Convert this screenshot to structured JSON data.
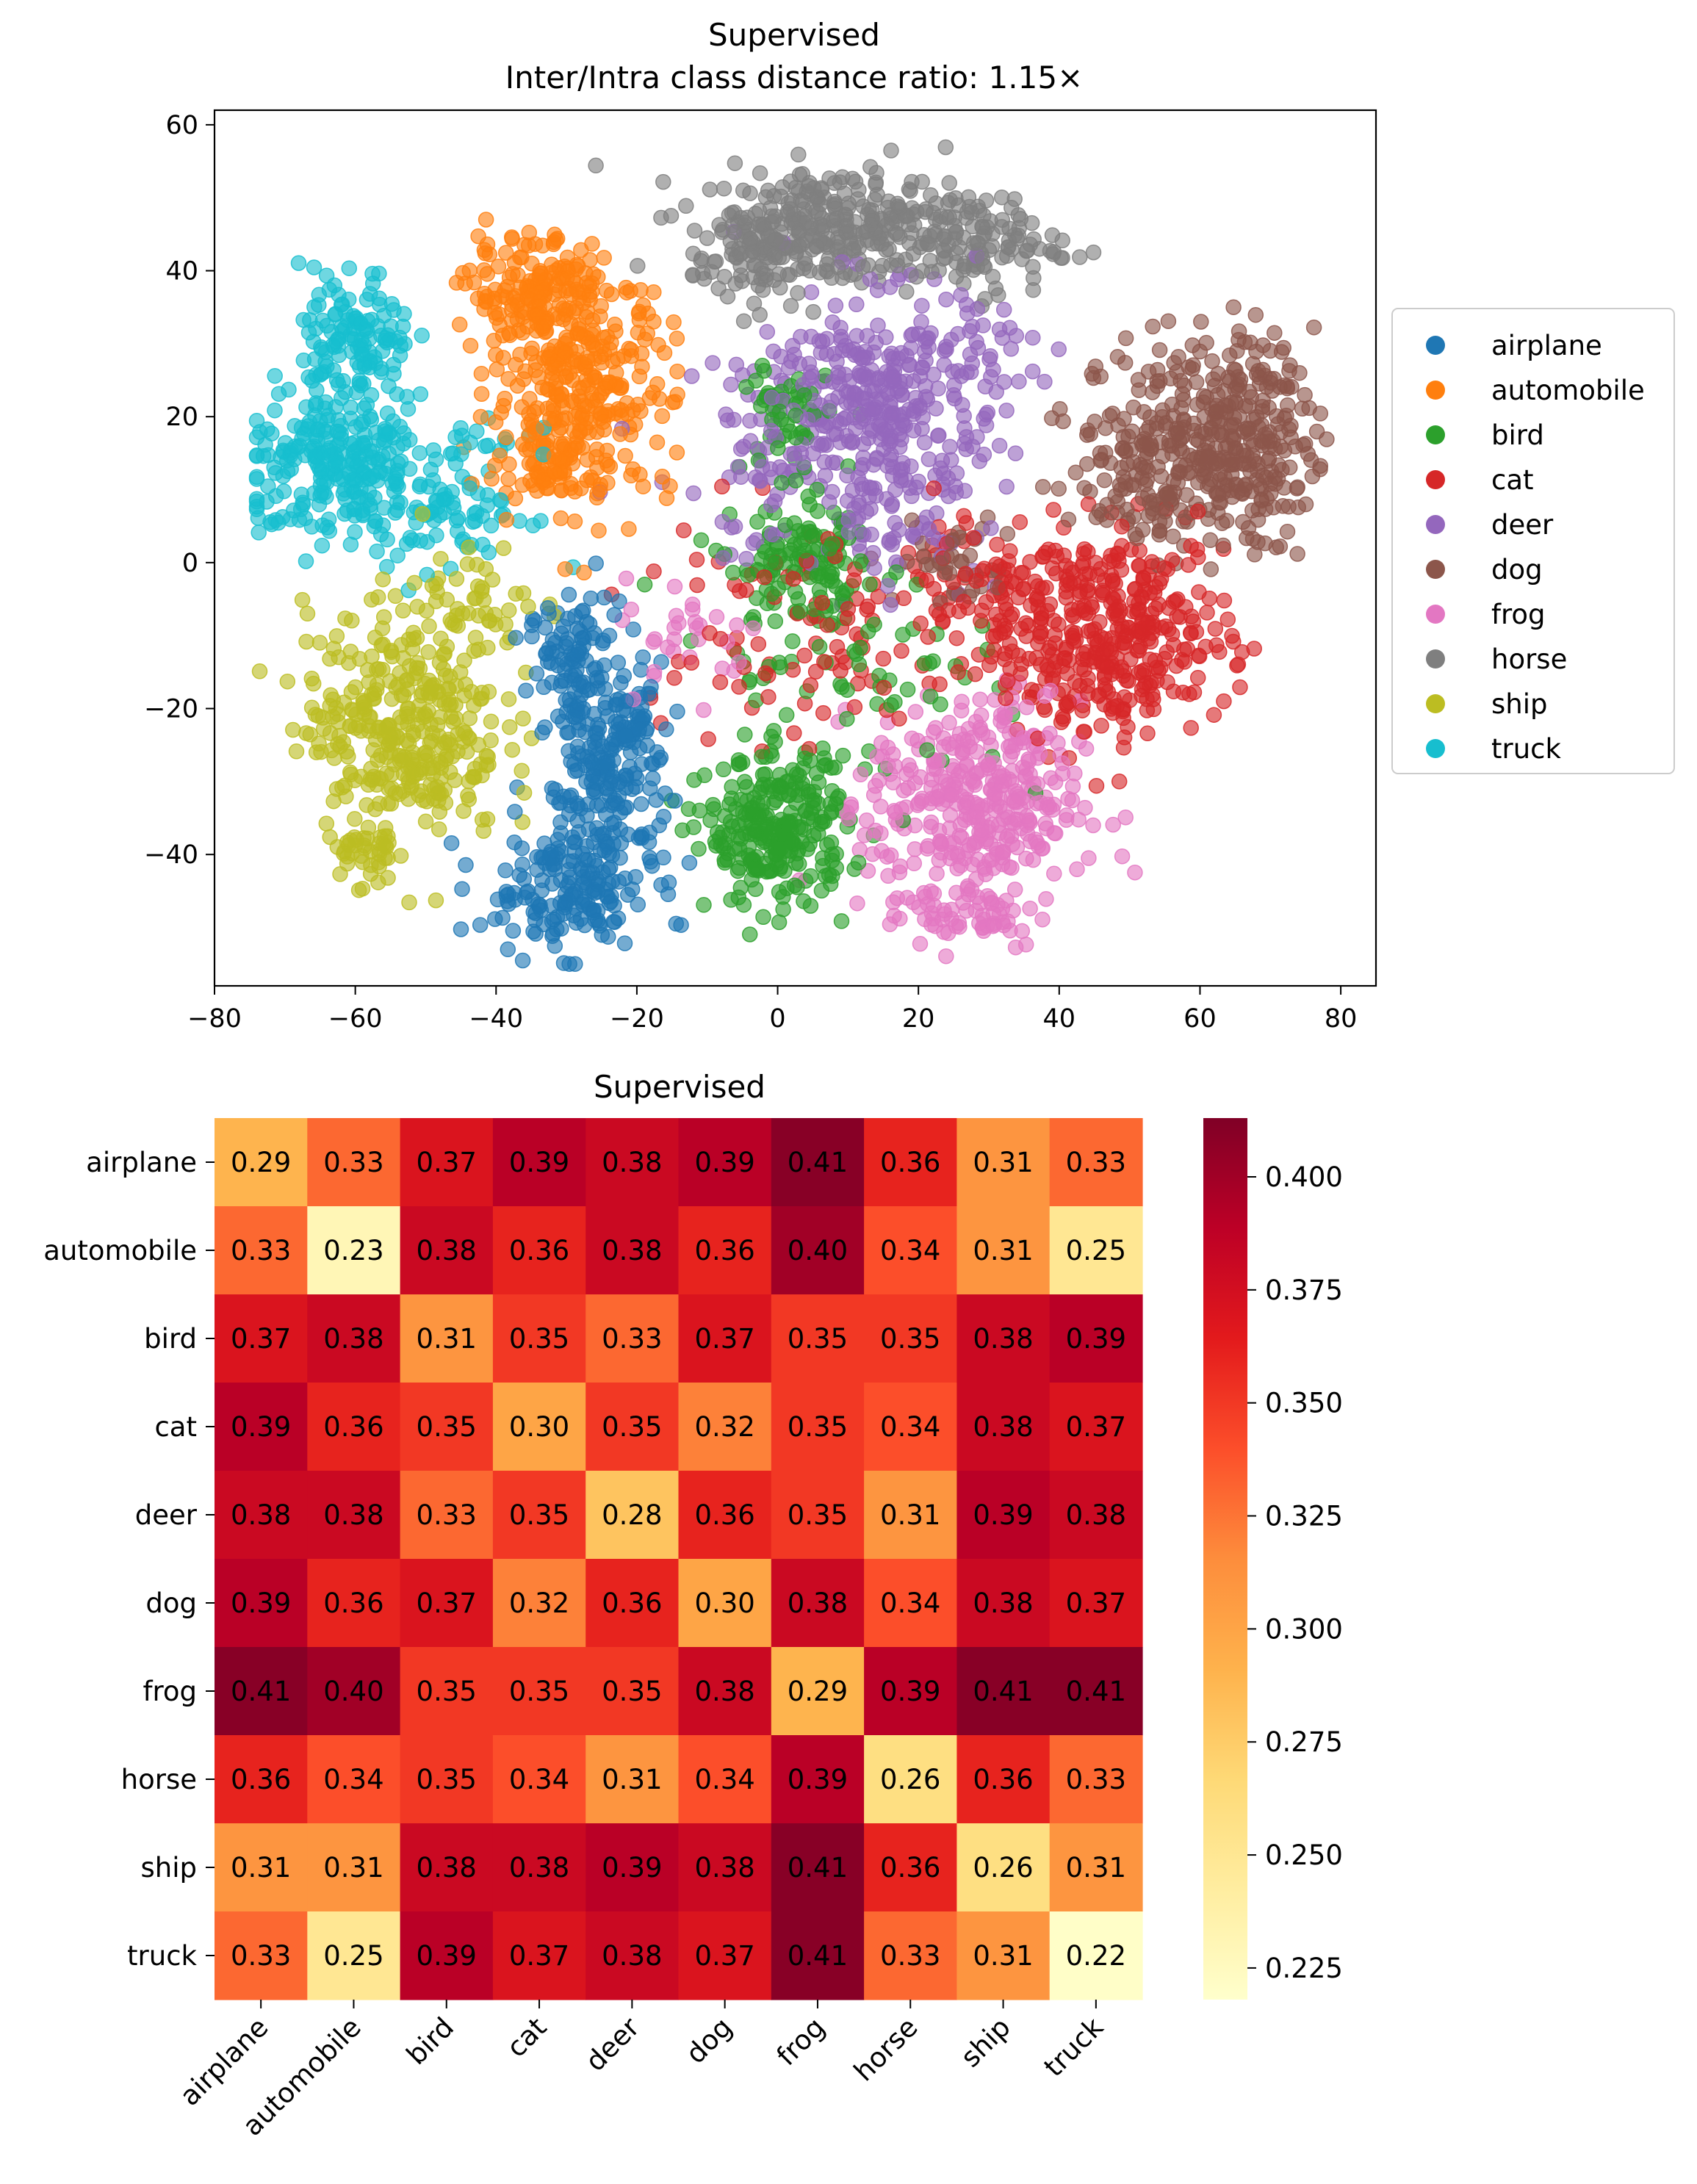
{
  "chart_data": [
    {
      "type": "scatter",
      "title": "Supervised",
      "subtitle": "Inter/Intra class distance ratio: 1.15×",
      "xlabel": "",
      "ylabel": "",
      "xlim": [
        -80,
        85
      ],
      "ylim": [
        -58,
        62
      ],
      "xticks": [
        "−80",
        "−60",
        "−40",
        "−20",
        "0",
        "20",
        "40",
        "60",
        "80"
      ],
      "yticks": [
        "−40",
        "−20",
        "0",
        "20",
        "40",
        "60"
      ],
      "legend_position": "right",
      "series": [
        {
          "name": "airplane",
          "color": "#1f77b4",
          "clusters": [
            {
              "cx": -29,
              "cy": -15,
              "sx": 3.2,
              "sy": 5,
              "n": 110
            },
            {
              "cx": -24,
              "cy": -30,
              "sx": 4,
              "sy": 6,
              "n": 140
            },
            {
              "cx": -30,
              "cy": -45,
              "sx": 6,
              "sy": 4,
              "n": 170
            },
            {
              "cx": -22,
              "cy": -22,
              "sx": 3,
              "sy": 5,
              "n": 60
            }
          ]
        },
        {
          "name": "automobile",
          "color": "#ff7f0e",
          "clusters": [
            {
              "cx": -34,
              "cy": 37,
              "sx": 5,
              "sy": 3.5,
              "n": 150
            },
            {
              "cx": -28,
              "cy": 24,
              "sx": 6.5,
              "sy": 7.5,
              "n": 300
            },
            {
              "cx": -32,
              "cy": 14,
              "sx": 4,
              "sy": 3,
              "n": 60
            }
          ]
        },
        {
          "name": "bird",
          "color": "#2ca02c",
          "clusters": [
            {
              "cx": 0,
              "cy": -37,
              "sx": 5,
              "sy": 5,
              "n": 260
            },
            {
              "cx": 4,
              "cy": 0,
              "sx": 5,
              "sy": 4,
              "n": 110
            },
            {
              "cx": 1,
              "cy": 20,
              "sx": 3,
              "sy": 4,
              "n": 50
            },
            {
              "cx": 8,
              "cy": -15,
              "sx": 12,
              "sy": 8,
              "n": 90
            }
          ]
        },
        {
          "name": "cat",
          "color": "#d62728",
          "clusters": [
            {
              "cx": 48,
              "cy": -10,
              "sx": 8,
              "sy": 7,
              "n": 360
            },
            {
              "cx": 30,
              "cy": -4,
              "sx": 7,
              "sy": 6,
              "n": 110
            },
            {
              "cx": 0,
              "cy": -10,
              "sx": 12,
              "sy": 9,
              "n": 90
            }
          ]
        },
        {
          "name": "deer",
          "color": "#9467bd",
          "clusters": [
            {
              "cx": 15,
              "cy": 23,
              "sx": 9,
              "sy": 7,
              "n": 340
            },
            {
              "cx": 17,
              "cy": 8,
              "sx": 6,
              "sy": 5,
              "n": 80
            },
            {
              "cx": 0,
              "cy": 12,
              "sx": 9,
              "sy": 6,
              "n": 60
            }
          ]
        },
        {
          "name": "dog",
          "color": "#8c564b",
          "clusters": [
            {
              "cx": 66,
              "cy": 17,
              "sx": 5,
              "sy": 7,
              "n": 260
            },
            {
              "cx": 54,
              "cy": 15,
              "sx": 6,
              "sy": 7,
              "n": 200
            },
            {
              "cx": 25,
              "cy": 0,
              "sx": 4,
              "sy": 3,
              "n": 40
            }
          ]
        },
        {
          "name": "frog",
          "color": "#e377c2",
          "clusters": [
            {
              "cx": 28,
              "cy": -33,
              "sx": 7.5,
              "sy": 7,
              "n": 370
            },
            {
              "cx": 27,
              "cy": -48,
              "sx": 6,
              "sy": 2.5,
              "n": 60
            },
            {
              "cx": -12,
              "cy": -10,
              "sx": 5,
              "sy": 4,
              "n": 30
            }
          ]
        },
        {
          "name": "horse",
          "color": "#7f7f7f",
          "clusters": [
            {
              "cx": 8,
              "cy": 46,
              "sx": 10,
              "sy": 4,
              "n": 300
            },
            {
              "cx": 28,
              "cy": 44,
              "sx": 6,
              "sy": 3.5,
              "n": 100
            },
            {
              "cx": -4,
              "cy": 42,
              "sx": 4,
              "sy": 3,
              "n": 60
            }
          ]
        },
        {
          "name": "ship",
          "color": "#bcbd22",
          "clusters": [
            {
              "cx": -53,
              "cy": -22,
              "sx": 7,
              "sy": 8,
              "n": 360
            },
            {
              "cx": -59,
              "cy": -40,
              "sx": 2.2,
              "sy": 2.5,
              "n": 35
            },
            {
              "cx": -42,
              "cy": -5,
              "sx": 4,
              "sy": 4,
              "n": 40
            }
          ]
        },
        {
          "name": "truck",
          "color": "#17becf",
          "clusters": [
            {
              "cx": -60,
              "cy": 30,
              "sx": 4,
              "sy": 5,
              "n": 130
            },
            {
              "cx": -62,
              "cy": 13,
              "sx": 7,
              "sy": 5,
              "n": 260
            },
            {
              "cx": -45,
              "cy": 8,
              "sx": 5,
              "sy": 5,
              "n": 80
            }
          ]
        }
      ]
    },
    {
      "type": "heatmap",
      "title": "Supervised",
      "labels": [
        "airplane",
        "automobile",
        "bird",
        "cat",
        "deer",
        "dog",
        "frog",
        "horse",
        "ship",
        "truck"
      ],
      "values": [
        [
          0.29,
          0.33,
          0.37,
          0.39,
          0.38,
          0.39,
          0.41,
          0.36,
          0.31,
          0.33
        ],
        [
          0.33,
          0.23,
          0.38,
          0.36,
          0.38,
          0.36,
          0.4,
          0.34,
          0.31,
          0.25
        ],
        [
          0.37,
          0.38,
          0.31,
          0.35,
          0.33,
          0.37,
          0.35,
          0.35,
          0.38,
          0.39
        ],
        [
          0.39,
          0.36,
          0.35,
          0.3,
          0.35,
          0.32,
          0.35,
          0.34,
          0.38,
          0.37
        ],
        [
          0.38,
          0.38,
          0.33,
          0.35,
          0.28,
          0.36,
          0.35,
          0.31,
          0.39,
          0.38
        ],
        [
          0.39,
          0.36,
          0.37,
          0.32,
          0.36,
          0.3,
          0.38,
          0.34,
          0.38,
          0.37
        ],
        [
          0.41,
          0.4,
          0.35,
          0.35,
          0.35,
          0.38,
          0.29,
          0.39,
          0.41,
          0.41
        ],
        [
          0.36,
          0.34,
          0.35,
          0.34,
          0.31,
          0.34,
          0.39,
          0.26,
          0.36,
          0.33
        ],
        [
          0.31,
          0.31,
          0.38,
          0.38,
          0.39,
          0.38,
          0.41,
          0.36,
          0.26,
          0.31
        ],
        [
          0.33,
          0.25,
          0.39,
          0.37,
          0.38,
          0.37,
          0.41,
          0.33,
          0.31,
          0.22
        ]
      ],
      "vmin": 0.218,
      "vmax": 0.413,
      "colormap": "YlOrRd",
      "colorbar_ticks": [
        "0.400",
        "0.375",
        "0.350",
        "0.325",
        "0.300",
        "0.275",
        "0.250",
        "0.225"
      ]
    }
  ]
}
